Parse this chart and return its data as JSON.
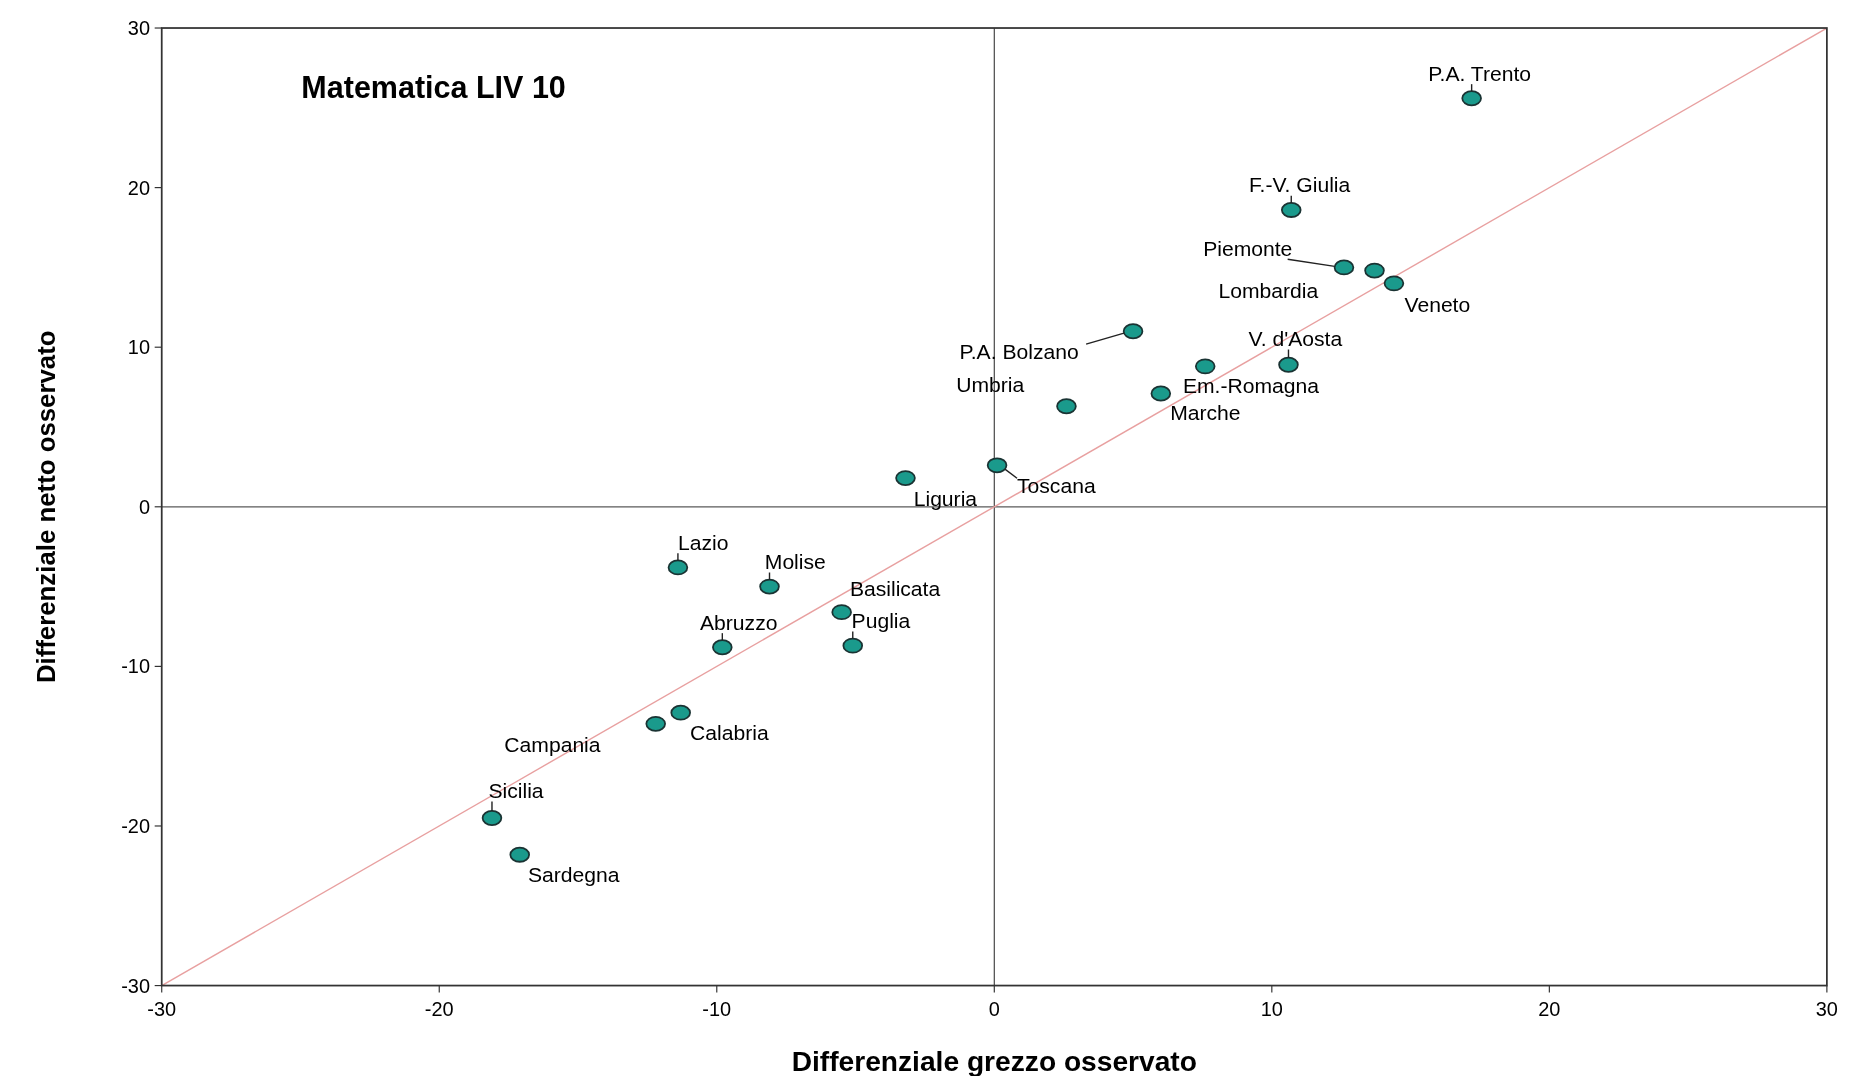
{
  "chart_data": {
    "type": "scatter",
    "title": "Matematica LIV 10",
    "xlabel": "Differenziale grezzo osservato",
    "ylabel": "Differenziale netto osservato",
    "xlim": [
      -30,
      30
    ],
    "xticks": [
      -30,
      -20,
      -10,
      0,
      10,
      20,
      30
    ],
    "ylim": [
      -30,
      30
    ],
    "yticks": [
      -30,
      -20,
      -10,
      0,
      10,
      20,
      30
    ],
    "grid": false,
    "series": [
      {
        "marker": "circle",
        "color": "#1a9a8c",
        "x": [
          17.2,
          10.7,
          12.6,
          13.7,
          14.4,
          5.0,
          7.6,
          10.6,
          6.0,
          2.6,
          0.1,
          -3.2,
          -11.4,
          -8.1,
          -5.5,
          -9.8,
          -5.1,
          -11.3,
          -12.2,
          -18.1,
          -17.1
        ],
        "values": [
          25.6,
          18.6,
          15.0,
          14.8,
          14.0,
          11.0,
          8.8,
          8.9,
          7.1,
          6.3,
          2.6,
          1.8,
          -3.8,
          -5.0,
          -6.6,
          -8.8,
          -8.7,
          -12.9,
          -13.6,
          -19.5,
          -21.8
        ]
      },
      {
        "type": "line",
        "color": "#e8a0a0",
        "x": [
          -30,
          30
        ],
        "values": [
          -30,
          30
        ]
      }
    ],
    "ref_lines": [
      {
        "axis": "x",
        "value": 0,
        "color": "#444444"
      },
      {
        "axis": "y",
        "value": 0,
        "color": "#5a5a5a"
      }
    ],
    "annotations": [
      {
        "text": "P.A. Trento",
        "x": 17.2,
        "y": 25.6
      },
      {
        "text": "F.-V. Giulia",
        "x": 10.7,
        "y": 18.6
      },
      {
        "text": "Piemonte",
        "x": 12.6,
        "y": 15.0
      },
      {
        "text": "Lombardia",
        "x": 13.7,
        "y": 14.8
      },
      {
        "text": "Veneto",
        "x": 14.4,
        "y": 14.0
      },
      {
        "text": "P.A. Bolzano",
        "x": 5.0,
        "y": 11.0
      },
      {
        "text": "Em.-Romagna",
        "x": 7.6,
        "y": 8.8
      },
      {
        "text": "V. d'Aosta",
        "x": 10.6,
        "y": 8.9
      },
      {
        "text": "Marche",
        "x": 6.0,
        "y": 7.1
      },
      {
        "text": "Umbria",
        "x": 2.6,
        "y": 6.3
      },
      {
        "text": "Toscana",
        "x": 0.1,
        "y": 2.6
      },
      {
        "text": "Liguria",
        "x": -3.2,
        "y": 1.8
      },
      {
        "text": "Lazio",
        "x": -11.4,
        "y": -3.8
      },
      {
        "text": "Molise",
        "x": -8.1,
        "y": -5.0
      },
      {
        "text": "Basilicata",
        "x": -5.5,
        "y": -6.6
      },
      {
        "text": "Abruzzo",
        "x": -9.8,
        "y": -8.8
      },
      {
        "text": "Puglia",
        "x": -5.1,
        "y": -8.7
      },
      {
        "text": "Calabria",
        "x": -11.3,
        "y": -12.9
      },
      {
        "text": "Campania",
        "x": -12.2,
        "y": -13.6
      },
      {
        "text": "Sicilia",
        "x": -18.1,
        "y": -19.5
      },
      {
        "text": "Sardegna",
        "x": -17.1,
        "y": -21.8
      }
    ]
  }
}
